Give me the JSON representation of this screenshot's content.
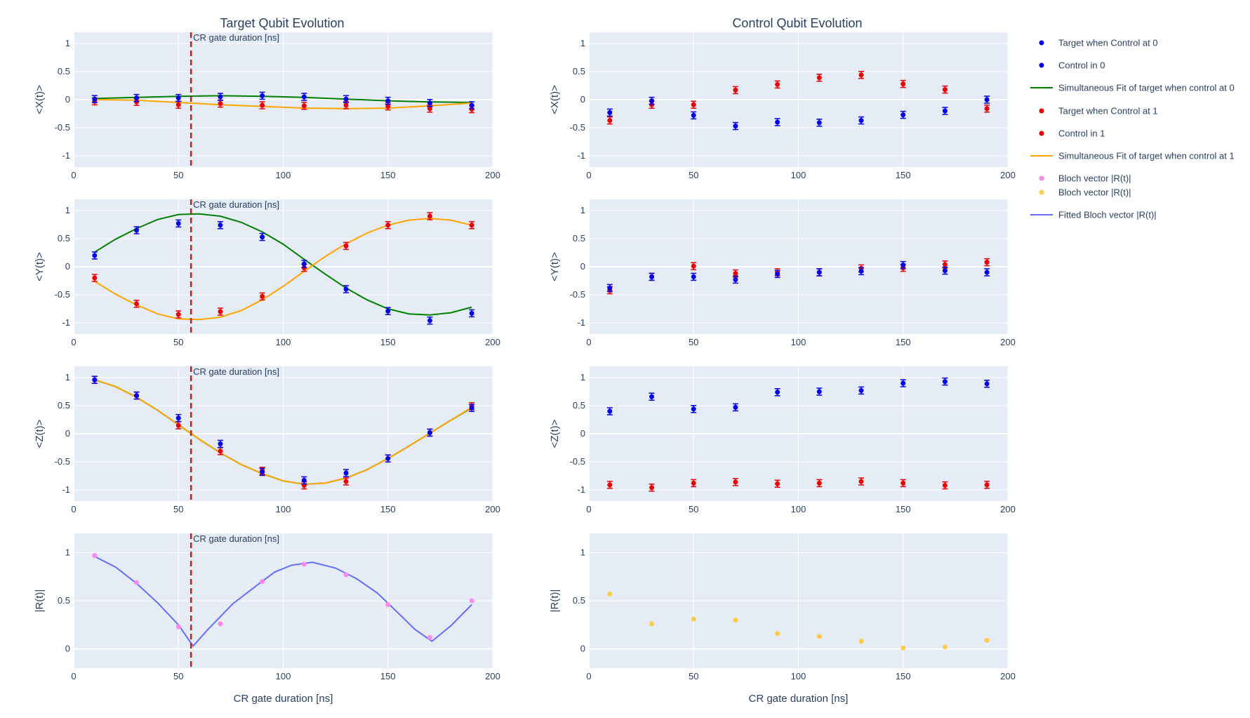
{
  "chart_data": {
    "type": "scatter",
    "layout": "4x2 subplot grid",
    "titles": {
      "left": "Target Qubit Evolution",
      "right": "Control Qubit Evolution"
    },
    "xlabel": "CR gate duration [ns]",
    "xlim": [
      0,
      200
    ],
    "xticks": [
      0,
      50,
      100,
      150,
      200
    ],
    "marker_line": {
      "x": 56,
      "label": "CR gate duration [ns]",
      "color": "#e3120b"
    },
    "rows": [
      {
        "ylabel": "<X(t)>",
        "ylim": [
          -1.2,
          1.2
        ],
        "yticks": [
          -1,
          -0.5,
          0,
          0.5,
          1
        ]
      },
      {
        "ylabel": "<Y(t)>",
        "ylim": [
          -1.2,
          1.2
        ],
        "yticks": [
          -1,
          -0.5,
          0,
          0.5,
          1
        ]
      },
      {
        "ylabel": "<Z(t)>",
        "ylim": [
          -1.2,
          1.2
        ],
        "yticks": [
          -1,
          -0.5,
          0,
          0.5,
          1
        ]
      },
      {
        "ylabel": "|R(t)|",
        "ylim": [
          -0.2,
          1.2
        ],
        "yticks": [
          0,
          0.5,
          1
        ]
      }
    ],
    "x": [
      10,
      30,
      50,
      70,
      90,
      110,
      130,
      150,
      170,
      190
    ],
    "colors": {
      "blue": "#0000ee",
      "red": "#ee0000",
      "green": "#008000",
      "orange": "#ffa500",
      "pink": "#ff88ee",
      "gold": "#ffcc44",
      "fitline": "#636efa"
    },
    "series": {
      "target_c0": {
        "x": [
          0.01,
          0.03,
          0.03,
          0.05,
          0.07,
          0.05,
          0.01,
          -0.02,
          -0.06,
          -0.1
        ],
        "y": [
          0.2,
          0.65,
          0.77,
          0.74,
          0.53,
          0.05,
          -0.4,
          -0.79,
          -0.96,
          -0.83
        ],
        "z": [
          0.96,
          0.68,
          0.28,
          -0.18,
          -0.68,
          -0.83,
          -0.7,
          -0.44,
          0.02,
          0.46
        ]
      },
      "target_c1": {
        "x": [
          -0.03,
          -0.04,
          -0.09,
          -0.07,
          -0.1,
          -0.11,
          -0.1,
          -0.12,
          -0.16,
          -0.17
        ],
        "y": [
          -0.2,
          -0.66,
          -0.85,
          -0.8,
          -0.53,
          -0.02,
          0.37,
          0.74,
          0.9,
          0.74
        ],
        "z": [
          0.96,
          0.68,
          0.15,
          -0.31,
          -0.66,
          -0.92,
          -0.85,
          -0.44,
          0.02,
          0.49
        ]
      },
      "control_c0": {
        "x": [
          -0.23,
          -0.02,
          -0.28,
          -0.47,
          -0.4,
          -0.41,
          -0.37,
          -0.27,
          -0.2,
          0.0
        ],
        "y": [
          -0.38,
          -0.18,
          -0.18,
          -0.23,
          -0.13,
          -0.1,
          -0.08,
          0.03,
          -0.07,
          -0.1
        ],
        "z": [
          0.4,
          0.66,
          0.44,
          0.47,
          0.74,
          0.75,
          0.77,
          0.9,
          0.93,
          0.89
        ]
      },
      "control_c1": {
        "x": [
          -0.37,
          -0.09,
          -0.09,
          0.17,
          0.27,
          0.39,
          0.44,
          0.28,
          0.18,
          -0.16
        ],
        "y": [
          -0.42,
          -0.18,
          0.01,
          -0.12,
          -0.1,
          -0.1,
          -0.03,
          -0.02,
          0.04,
          0.08
        ],
        "z": [
          -0.91,
          -0.96,
          -0.88,
          -0.86,
          -0.89,
          -0.88,
          -0.85,
          -0.88,
          -0.92,
          -0.91
        ]
      },
      "bloch_target": [
        0.97,
        0.69,
        0.23,
        0.26,
        0.7,
        0.88,
        0.77,
        0.46,
        0.12,
        0.5
      ],
      "bloch_control": [
        0.57,
        0.26,
        0.31,
        0.3,
        0.16,
        0.13,
        0.08,
        0.01,
        0.02,
        0.09
      ],
      "fit_c0": {
        "x": [
          [
            10,
            0.02
          ],
          [
            30,
            0.04
          ],
          [
            50,
            0.06
          ],
          [
            70,
            0.07
          ],
          [
            90,
            0.06
          ],
          [
            110,
            0.04
          ],
          [
            130,
            0.01
          ],
          [
            150,
            -0.02
          ],
          [
            170,
            -0.04
          ],
          [
            190,
            -0.05
          ]
        ],
        "y": [
          [
            10,
            0.26
          ],
          [
            20,
            0.49
          ],
          [
            30,
            0.68
          ],
          [
            40,
            0.84
          ],
          [
            50,
            0.93
          ],
          [
            60,
            0.94
          ],
          [
            70,
            0.9
          ],
          [
            80,
            0.79
          ],
          [
            90,
            0.62
          ],
          [
            100,
            0.4
          ],
          [
            110,
            0.13
          ],
          [
            120,
            -0.13
          ],
          [
            130,
            -0.38
          ],
          [
            140,
            -0.59
          ],
          [
            150,
            -0.75
          ],
          [
            160,
            -0.84
          ],
          [
            170,
            -0.86
          ],
          [
            180,
            -0.82
          ],
          [
            190,
            -0.72
          ]
        ],
        "z": [
          [
            10,
            0.96
          ],
          [
            20,
            0.84
          ],
          [
            30,
            0.65
          ],
          [
            40,
            0.42
          ],
          [
            50,
            0.16
          ],
          [
            60,
            -0.1
          ],
          [
            70,
            -0.34
          ],
          [
            80,
            -0.55
          ],
          [
            90,
            -0.71
          ],
          [
            100,
            -0.84
          ],
          [
            110,
            -0.9
          ],
          [
            120,
            -0.88
          ],
          [
            130,
            -0.79
          ],
          [
            140,
            -0.64
          ],
          [
            150,
            -0.44
          ],
          [
            160,
            -0.22
          ],
          [
            170,
            0.01
          ],
          [
            180,
            0.24
          ],
          [
            190,
            0.46
          ]
        ]
      },
      "fit_c1": {
        "x": [
          [
            10,
            0.0
          ],
          [
            30,
            -0.01
          ],
          [
            50,
            -0.05
          ],
          [
            70,
            -0.09
          ],
          [
            90,
            -0.12
          ],
          [
            110,
            -0.15
          ],
          [
            130,
            -0.16
          ],
          [
            150,
            -0.15
          ],
          [
            170,
            -0.11
          ],
          [
            190,
            -0.06
          ]
        ],
        "y": [
          [
            10,
            -0.26
          ],
          [
            20,
            -0.49
          ],
          [
            30,
            -0.68
          ],
          [
            40,
            -0.84
          ],
          [
            50,
            -0.93
          ],
          [
            60,
            -0.94
          ],
          [
            70,
            -0.9
          ],
          [
            80,
            -0.78
          ],
          [
            90,
            -0.59
          ],
          [
            100,
            -0.35
          ],
          [
            110,
            -0.08
          ],
          [
            120,
            0.18
          ],
          [
            130,
            0.41
          ],
          [
            140,
            0.6
          ],
          [
            150,
            0.74
          ],
          [
            160,
            0.83
          ],
          [
            170,
            0.86
          ],
          [
            180,
            0.83
          ],
          [
            190,
            0.74
          ]
        ],
        "z": [
          [
            10,
            0.96
          ],
          [
            20,
            0.84
          ],
          [
            30,
            0.65
          ],
          [
            40,
            0.42
          ],
          [
            50,
            0.16
          ],
          [
            60,
            -0.1
          ],
          [
            70,
            -0.34
          ],
          [
            80,
            -0.55
          ],
          [
            90,
            -0.71
          ],
          [
            100,
            -0.84
          ],
          [
            110,
            -0.9
          ],
          [
            120,
            -0.88
          ],
          [
            130,
            -0.79
          ],
          [
            140,
            -0.64
          ],
          [
            150,
            -0.44
          ],
          [
            160,
            -0.22
          ],
          [
            170,
            0.01
          ],
          [
            180,
            0.24
          ],
          [
            190,
            0.47
          ]
        ]
      },
      "fit_bloch": [
        [
          10,
          0.96
        ],
        [
          20,
          0.85
        ],
        [
          30,
          0.68
        ],
        [
          40,
          0.48
        ],
        [
          50,
          0.25
        ],
        [
          57,
          0.03
        ],
        [
          64,
          0.2
        ],
        [
          76,
          0.47
        ],
        [
          88,
          0.67
        ],
        [
          96,
          0.8
        ],
        [
          104,
          0.87
        ],
        [
          114,
          0.9
        ],
        [
          125,
          0.84
        ],
        [
          135,
          0.73
        ],
        [
          145,
          0.58
        ],
        [
          155,
          0.37
        ],
        [
          163,
          0.2
        ],
        [
          171,
          0.08
        ],
        [
          180,
          0.24
        ],
        [
          190,
          0.46
        ]
      ]
    },
    "legend": [
      {
        "label": "Target when Control at 0",
        "kind": "marker",
        "color": "#0000ee"
      },
      {
        "label": "Control in 0",
        "kind": "marker",
        "color": "#0000ee"
      },
      {
        "label": "Simultaneous Fit of target when control at 0",
        "kind": "line",
        "color": "#008000"
      },
      {
        "label": "Target when Control at 1",
        "kind": "marker",
        "color": "#ee0000"
      },
      {
        "label": "Control in 1",
        "kind": "marker",
        "color": "#ee0000"
      },
      {
        "label": "Simultaneous Fit of target when control at 1",
        "kind": "line",
        "color": "#ffa500"
      },
      {
        "label": "Bloch vector |R(t)|",
        "kind": "marker",
        "color": "#ff88ee"
      },
      {
        "label": "Bloch vector |R(t)|",
        "kind": "marker",
        "color": "#ffcc44"
      },
      {
        "label": "Fitted Bloch vector |R(t)|",
        "kind": "line",
        "color": "#636efa"
      }
    ],
    "legend_position": "right"
  }
}
